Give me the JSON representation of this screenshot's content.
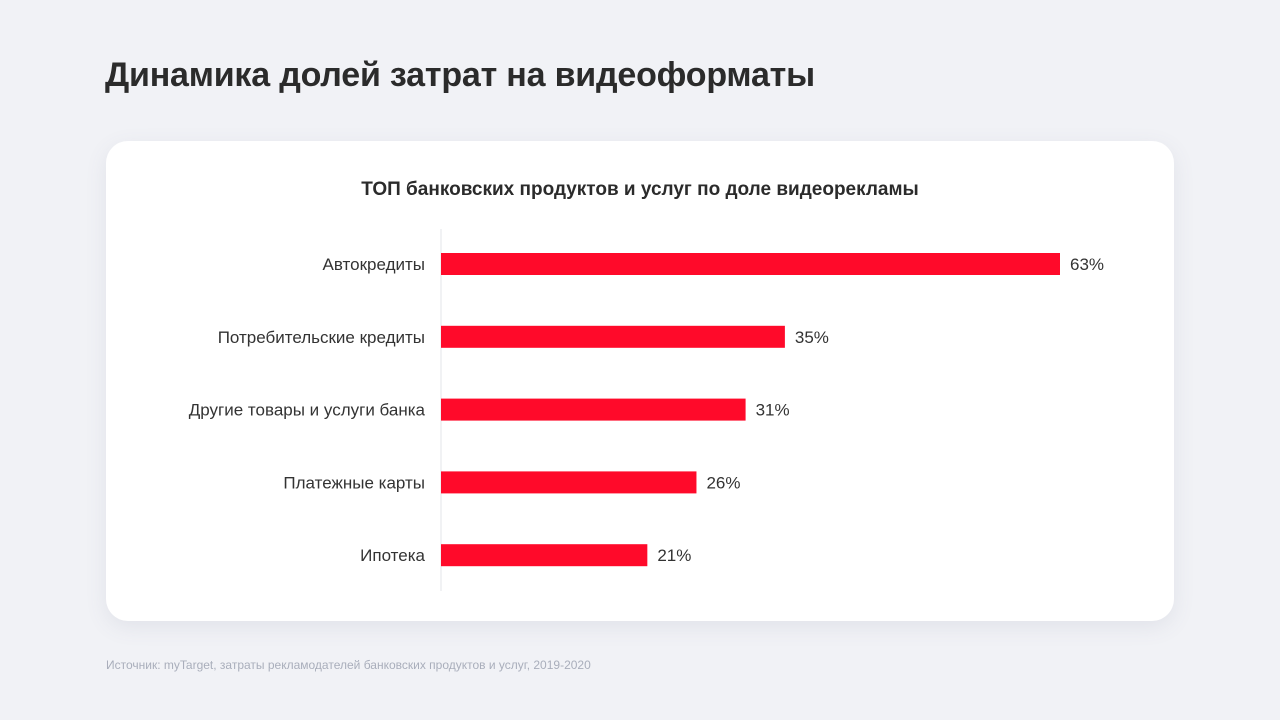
{
  "page": {
    "title": "Динамика долей затрат на видеоформаты",
    "source": "Источник: myTarget, затраты рекламодателей банковских продуктов и услуг,  2019-2020"
  },
  "colors": {
    "background": "#f1f2f6",
    "card": "#ffffff",
    "bar": "#ff0a2a",
    "text": "#2b2b2b",
    "source_text": "#a9aebb"
  },
  "chart_data": {
    "type": "bar",
    "orientation": "horizontal",
    "title": "ТОП банковских продуктов и услуг по доле видеорекламы",
    "categories": [
      "Автокредиты",
      "Потребительские кредиты",
      "Другие товары и услуги банка",
      "Платежные карты",
      "Ипотека"
    ],
    "values": [
      63,
      35,
      31,
      26,
      21
    ],
    "value_labels": [
      "63%",
      "35%",
      "31%",
      "26%",
      "21%"
    ],
    "unit": "%",
    "xlim": [
      0,
      63
    ],
    "grid": false,
    "legend": "none"
  }
}
